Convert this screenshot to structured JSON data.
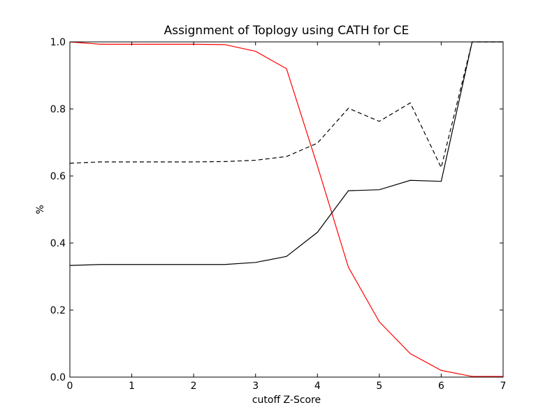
{
  "chart_data": {
    "type": "line",
    "title": "Assignment of Toplogy using CATH for CE",
    "xlabel": "cutoff Z-Score",
    "ylabel": "%",
    "xlim": [
      0,
      7
    ],
    "ylim": [
      0.0,
      1.0
    ],
    "xticks": [
      "0",
      "1",
      "2",
      "3",
      "4",
      "5",
      "6",
      "7"
    ],
    "yticks": [
      "0.0",
      "0.2",
      "0.4",
      "0.6",
      "0.8",
      "1.0"
    ],
    "grid": false,
    "x": [
      0,
      0.5,
      1,
      1.5,
      2,
      2.5,
      3,
      3.5,
      4,
      4.5,
      5,
      5.5,
      6,
      6.5,
      7
    ],
    "series": [
      {
        "color": "#ff0000",
        "style": "solid",
        "values": [
          1.0,
          0.993,
          0.993,
          0.993,
          0.993,
          0.992,
          0.972,
          0.92,
          0.63,
          0.328,
          0.165,
          0.07,
          0.02,
          0.002,
          0.002
        ]
      },
      {
        "color": "#000000",
        "style": "dashed",
        "values": [
          0.638,
          0.642,
          0.642,
          0.642,
          0.642,
          0.643,
          0.647,
          0.658,
          0.698,
          0.802,
          0.763,
          0.818,
          0.625,
          1.0,
          1.0
        ]
      },
      {
        "color": "#000000",
        "style": "solid",
        "values": [
          0.333,
          0.336,
          0.336,
          0.336,
          0.336,
          0.336,
          0.342,
          0.36,
          0.432,
          0.556,
          0.559,
          0.587,
          0.584,
          1.0,
          1.0
        ]
      }
    ]
  }
}
